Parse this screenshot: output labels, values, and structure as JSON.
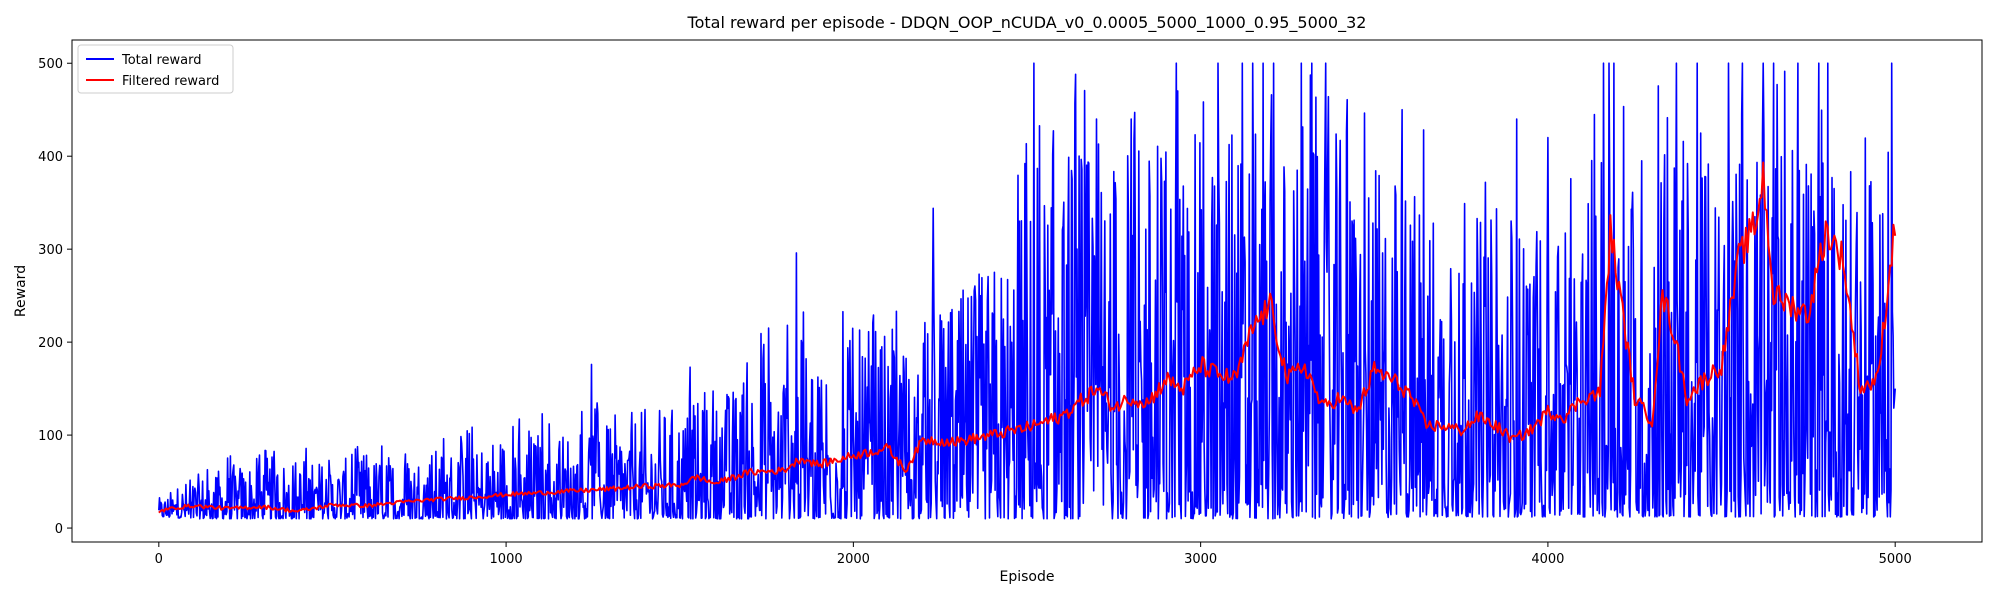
{
  "chart_data": {
    "type": "line",
    "title": "Total reward per episode - DDQN_OOP_nCUDA_v0_0.0005_5000_1000_0.95_5000_32",
    "xlabel": "Episode",
    "ylabel": "Reward",
    "xlim": [
      -250,
      5250
    ],
    "ylim": [
      -15,
      525
    ],
    "x_ticks": [
      0,
      1000,
      2000,
      3000,
      4000,
      5000
    ],
    "y_ticks": [
      0,
      100,
      200,
      300,
      400,
      500
    ],
    "grid": false,
    "legend_position": "top-left",
    "series": [
      {
        "name": "Total reward",
        "color": "#0000ff",
        "style": "noisy",
        "envelope": {
          "x": [
            0,
            100,
            300,
            500,
            800,
            1000,
            1200,
            1400,
            1600,
            1800,
            2000,
            2200,
            2400,
            2600,
            2800,
            3000,
            3200,
            3400,
            3600,
            3800,
            4000,
            4100,
            4200,
            4300,
            4400,
            4500,
            4600,
            4700,
            4800,
            4900,
            5000
          ],
          "low": [
            12,
            10,
            10,
            10,
            10,
            10,
            10,
            10,
            10,
            10,
            10,
            10,
            10,
            10,
            10,
            10,
            10,
            10,
            12,
            12,
            12,
            12,
            12,
            12,
            12,
            12,
            12,
            12,
            12,
            12,
            12
          ],
          "high": [
            35,
            65,
            90,
            85,
            100,
            120,
            130,
            150,
            160,
            240,
            250,
            250,
            340,
            500,
            500,
            500,
            500,
            500,
            450,
            400,
            380,
            420,
            500,
            500,
            500,
            500,
            500,
            500,
            500,
            430,
            500
          ]
        },
        "spikes": [
          [
            1245,
            176
          ],
          [
            1530,
            173
          ],
          [
            1835,
            296
          ],
          [
            2230,
            344
          ],
          [
            2520,
            500
          ],
          [
            2700,
            440
          ],
          [
            2800,
            440
          ],
          [
            2930,
            500
          ],
          [
            3050,
            500
          ],
          [
            3120,
            500
          ],
          [
            3150,
            500
          ],
          [
            3180,
            500
          ],
          [
            3210,
            500
          ],
          [
            3290,
            500
          ],
          [
            3320,
            500
          ],
          [
            3360,
            500
          ],
          [
            3580,
            450
          ],
          [
            3760,
            349
          ],
          [
            3910,
            440
          ],
          [
            4000,
            420
          ],
          [
            4160,
            500
          ],
          [
            4175,
            500
          ],
          [
            4190,
            500
          ],
          [
            4370,
            500
          ],
          [
            4430,
            500
          ],
          [
            4520,
            500
          ],
          [
            4560,
            500
          ],
          [
            4620,
            500
          ],
          [
            4650,
            500
          ],
          [
            4720,
            500
          ],
          [
            4780,
            500
          ],
          [
            4805,
            500
          ],
          [
            4880,
            14
          ],
          [
            4990,
            500
          ],
          [
            5000,
            150
          ]
        ]
      },
      {
        "name": "Filtered reward",
        "color": "#ff0000",
        "style": "smooth",
        "x": [
          0,
          50,
          100,
          200,
          300,
          400,
          500,
          600,
          700,
          800,
          900,
          1000,
          1100,
          1200,
          1300,
          1400,
          1500,
          1550,
          1600,
          1700,
          1800,
          1850,
          1900,
          2000,
          2100,
          2150,
          2200,
          2300,
          2400,
          2500,
          2600,
          2700,
          2750,
          2800,
          2850,
          2900,
          2950,
          3000,
          3050,
          3100,
          3150,
          3200,
          3250,
          3300,
          3350,
          3400,
          3450,
          3500,
          3550,
          3600,
          3650,
          3700,
          3750,
          3800,
          3850,
          3900,
          3950,
          4000,
          4050,
          4100,
          4150,
          4180,
          4200,
          4250,
          4300,
          4330,
          4360,
          4400,
          4450,
          4500,
          4550,
          4600,
          4620,
          4650,
          4700,
          4750,
          4800,
          4850,
          4900,
          4950,
          5000
        ],
        "y": [
          18,
          22,
          24,
          21,
          23,
          18,
          25,
          24,
          28,
          31,
          33,
          36,
          38,
          40,
          42,
          45,
          46,
          55,
          48,
          60,
          62,
          75,
          68,
          78,
          86,
          62,
          95,
          93,
          100,
          108,
          120,
          150,
          130,
          140,
          135,
          160,
          150,
          175,
          165,
          160,
          215,
          240,
          160,
          175,
          130,
          140,
          125,
          170,
          160,
          145,
          110,
          110,
          105,
          120,
          110,
          95,
          105,
          125,
          120,
          140,
          145,
          320,
          270,
          140,
          115,
          250,
          215,
          140,
          160,
          175,
          290,
          330,
          380,
          250,
          240,
          230,
          320,
          290,
          150,
          160,
          330
        ]
      }
    ]
  }
}
